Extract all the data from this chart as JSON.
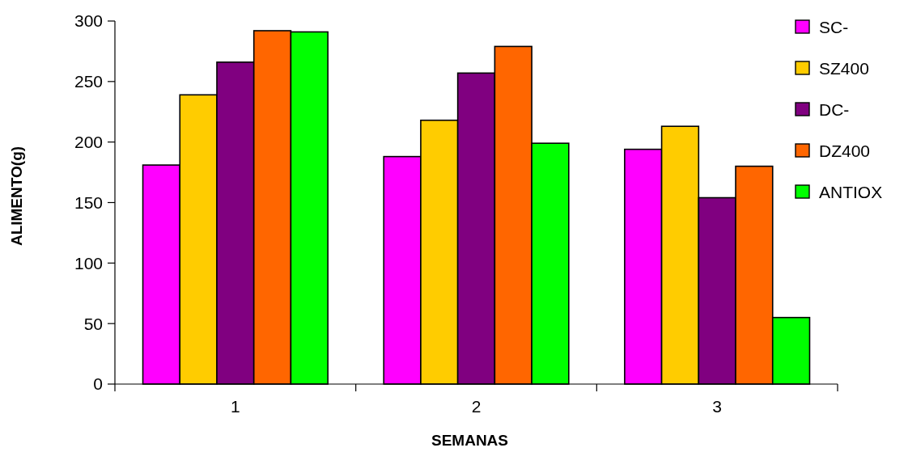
{
  "chart_data": {
    "type": "bar",
    "xlabel": "SEMANAS",
    "ylabel": "ALIMENTO(g)",
    "categories": [
      "1",
      "2",
      "3"
    ],
    "series": [
      {
        "name": "SC-",
        "color": "#ff00ff",
        "values": [
          181,
          188,
          194
        ]
      },
      {
        "name": "SZ400",
        "color": "#ffcc00",
        "values": [
          239,
          218,
          213
        ]
      },
      {
        "name": "DC-",
        "color": "#800080",
        "values": [
          266,
          257,
          154
        ]
      },
      {
        "name": "DZ400",
        "color": "#ff6600",
        "values": [
          292,
          279,
          180
        ]
      },
      {
        "name": "ANTIOX",
        "color": "#00ff00",
        "values": [
          291,
          199,
          55
        ]
      }
    ],
    "ylim": [
      0,
      300
    ],
    "yticks": [
      0,
      50,
      100,
      150,
      200,
      250,
      300
    ],
    "grid": false,
    "legend": "top right"
  }
}
